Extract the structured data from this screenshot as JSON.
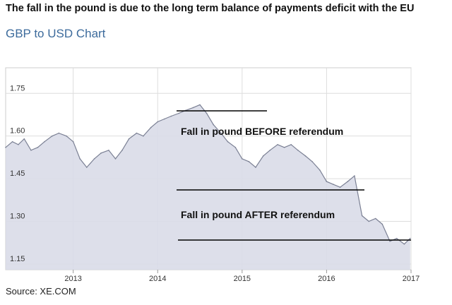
{
  "headline": "The fall in the pound is due to the long term balance of payments deficit with the EU",
  "source": "Source: XE.COM",
  "colors": {
    "chart_title": "#3d6b9c",
    "area_fill": "#d9dbe8",
    "area_line": "#7b8094",
    "grid": "#dddddd",
    "annotation_line": "#000000"
  },
  "chart_data": {
    "type": "area",
    "title": "GBP to USD Chart",
    "xlabel": "",
    "ylabel": "",
    "xlim": [
      2012.2,
      2017.0
    ],
    "ylim": [
      1.13,
      1.84
    ],
    "grid": true,
    "y_ticks": [
      1.15,
      1.3,
      1.45,
      1.6,
      1.75
    ],
    "y_tick_labels": [
      "1.15",
      "1.30",
      "1.45",
      "1.60",
      "1.75"
    ],
    "x_ticks": [
      2013,
      2014,
      2015,
      2016,
      2017
    ],
    "x_tick_labels": [
      "2013",
      "2014",
      "2015",
      "2016",
      "2017"
    ],
    "series": [
      {
        "x": [
          2012.2,
          2012.28,
          2012.35,
          2012.42,
          2012.5,
          2012.58,
          2012.66,
          2012.75,
          2012.83,
          2012.92,
          2013.0,
          2013.08,
          2013.16,
          2013.25,
          2013.33,
          2013.42,
          2013.5,
          2013.58,
          2013.66,
          2013.75,
          2013.83,
          2013.92,
          2014.0,
          2014.08,
          2014.16,
          2014.25,
          2014.33,
          2014.42,
          2014.5,
          2014.58,
          2014.66,
          2014.75,
          2014.83,
          2014.92,
          2015.0,
          2015.08,
          2015.16,
          2015.25,
          2015.33,
          2015.42,
          2015.5,
          2015.58,
          2015.66,
          2015.75,
          2015.83,
          2015.92,
          2016.0,
          2016.08,
          2016.16,
          2016.25,
          2016.33,
          2016.42,
          2016.5,
          2016.58,
          2016.66,
          2016.75,
          2016.83,
          2016.92,
          2016.99
        ],
        "values": [
          1.56,
          1.58,
          1.57,
          1.59,
          1.55,
          1.56,
          1.58,
          1.6,
          1.61,
          1.6,
          1.58,
          1.52,
          1.49,
          1.52,
          1.54,
          1.55,
          1.52,
          1.55,
          1.59,
          1.61,
          1.6,
          1.63,
          1.65,
          1.66,
          1.67,
          1.68,
          1.69,
          1.7,
          1.71,
          1.68,
          1.64,
          1.61,
          1.58,
          1.56,
          1.52,
          1.51,
          1.49,
          1.53,
          1.55,
          1.57,
          1.56,
          1.57,
          1.55,
          1.53,
          1.51,
          1.48,
          1.44,
          1.43,
          1.42,
          1.44,
          1.46,
          1.32,
          1.3,
          1.31,
          1.29,
          1.23,
          1.24,
          1.22,
          1.24
        ]
      }
    ],
    "annotations": [
      {
        "text": "Fall in pound BEFORE referendum"
      },
      {
        "text": "Fall in pound AFTER referendum"
      }
    ]
  }
}
